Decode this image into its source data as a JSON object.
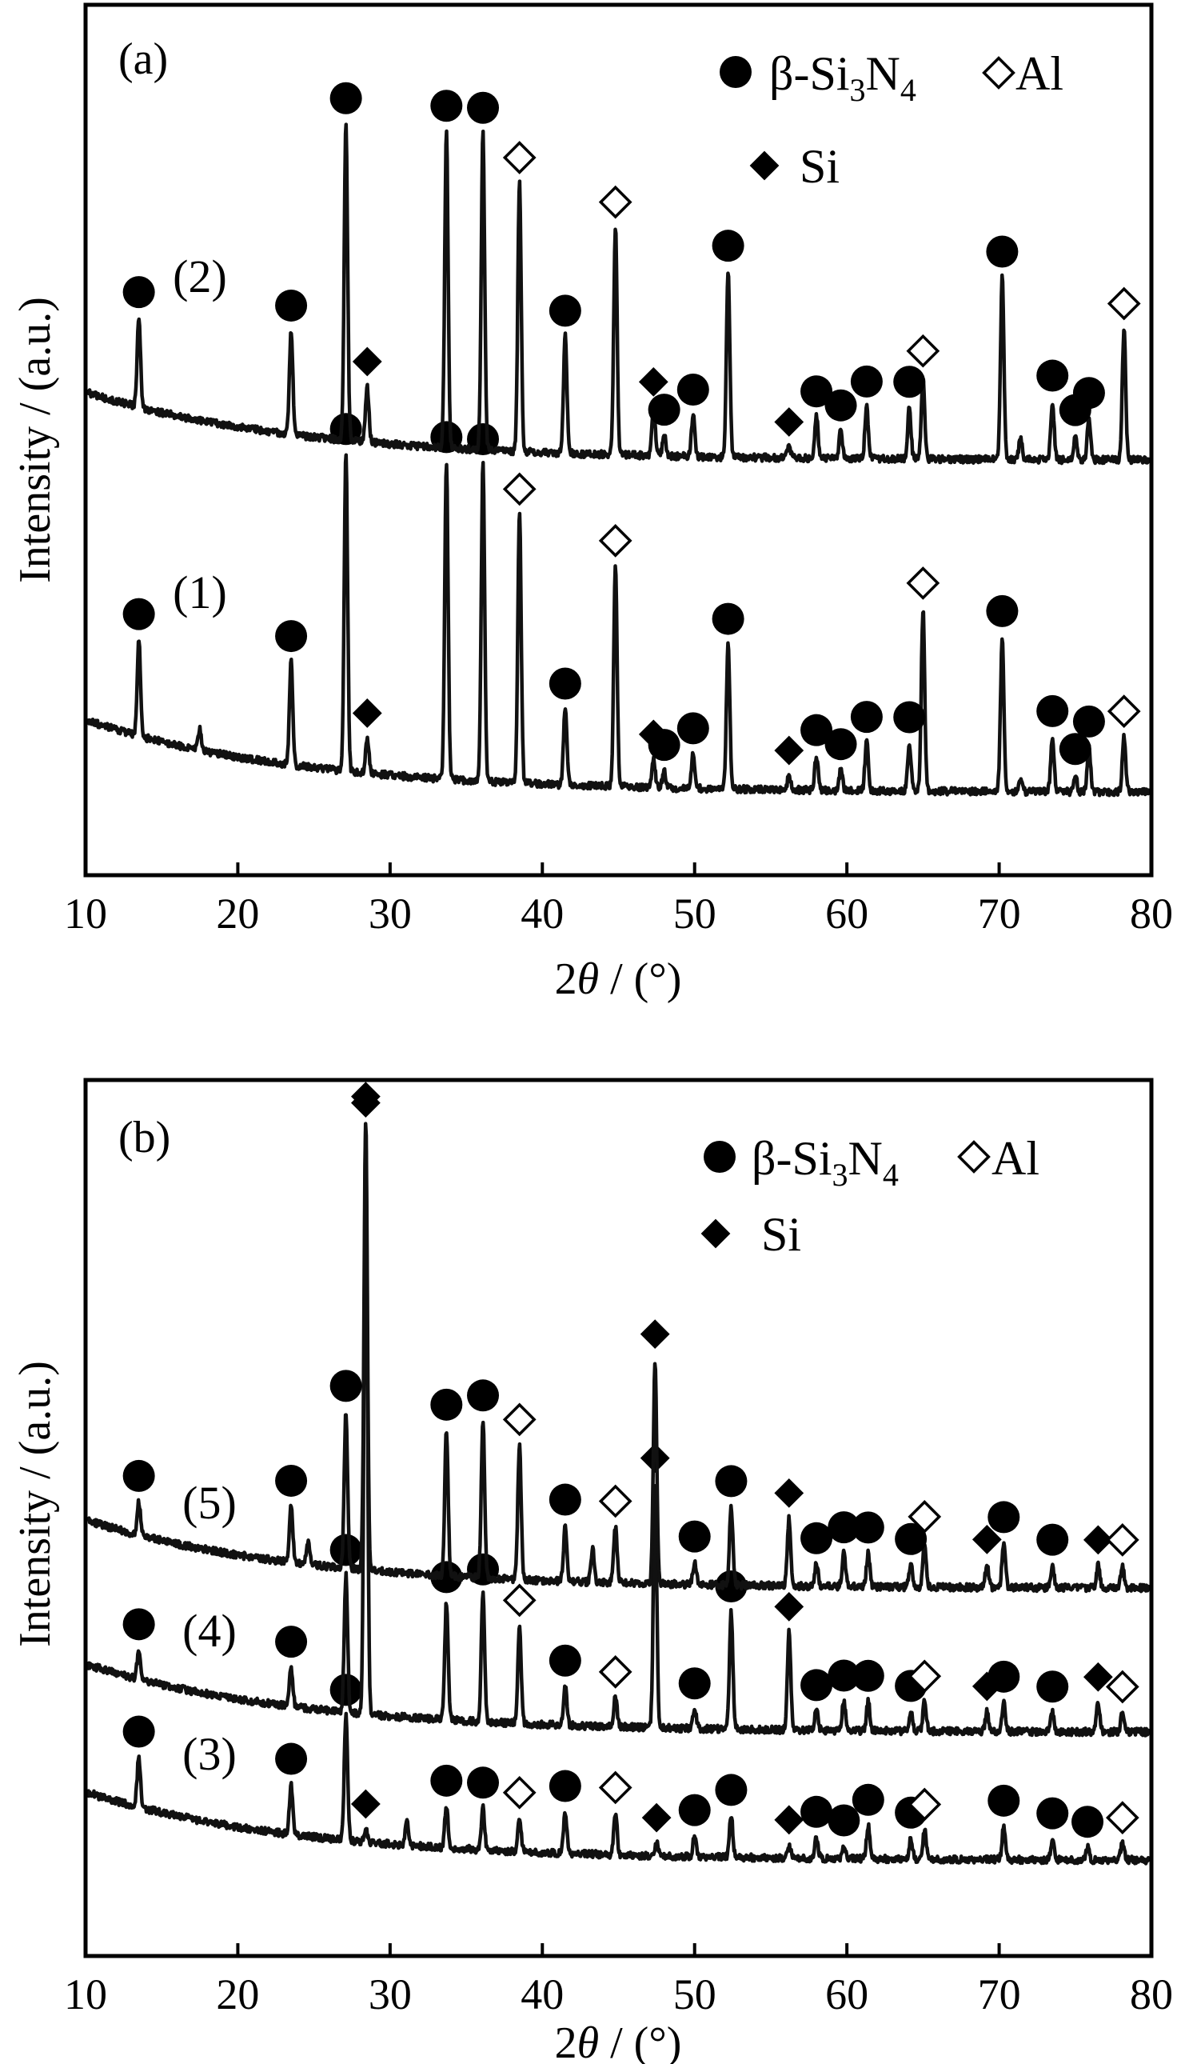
{
  "chart_data": [
    {
      "type": "line",
      "panel": "(a)",
      "xlabel_prefix": "2",
      "xlabel_theta": "θ",
      "xlabel_suffix": " / (°)",
      "ylabel": "Intensity / (a.u.)",
      "xlim": [
        10,
        80
      ],
      "xticks": [
        10,
        20,
        30,
        40,
        50,
        60,
        70,
        80
      ],
      "legend": {
        "si3n4_prefix": "β-Si",
        "si3n4_sub1": "3",
        "si3n4_mid": "N",
        "si3n4_sub2": "4",
        "al": "Al",
        "si": "Si"
      },
      "series": [
        {
          "name": "(1)",
          "peaks": [
            {
              "x": 13.5,
              "h": 0.28,
              "phase": "beta-Si3N4"
            },
            {
              "x": 17.5,
              "h": 0.06,
              "phase": ""
            },
            {
              "x": 23.5,
              "h": 0.3,
              "phase": "beta-Si3N4"
            },
            {
              "x": 27.1,
              "h": 0.92,
              "phase": "beta-Si3N4"
            },
            {
              "x": 28.5,
              "h": 0.1,
              "phase": "Si"
            },
            {
              "x": 33.7,
              "h": 0.92,
              "phase": "beta-Si3N4"
            },
            {
              "x": 36.1,
              "h": 0.92,
              "phase": "beta-Si3N4"
            },
            {
              "x": 38.5,
              "h": 0.78,
              "phase": "Al"
            },
            {
              "x": 41.5,
              "h": 0.22,
              "phase": "beta-Si3N4"
            },
            {
              "x": 44.8,
              "h": 0.64,
              "phase": "Al"
            },
            {
              "x": 47.3,
              "h": 0.08,
              "phase": "Si"
            },
            {
              "x": 48.0,
              "h": 0.05,
              "phase": "beta-Si3N4"
            },
            {
              "x": 49.9,
              "h": 0.1,
              "phase": "beta-Si3N4"
            },
            {
              "x": 52.2,
              "h": 0.42,
              "phase": "beta-Si3N4"
            },
            {
              "x": 56.2,
              "h": 0.04,
              "phase": "Si"
            },
            {
              "x": 58.0,
              "h": 0.1,
              "phase": "beta-Si3N4"
            },
            {
              "x": 59.6,
              "h": 0.06,
              "phase": "beta-Si3N4"
            },
            {
              "x": 61.3,
              "h": 0.14,
              "phase": "beta-Si3N4"
            },
            {
              "x": 64.1,
              "h": 0.14,
              "phase": "beta-Si3N4"
            },
            {
              "x": 65.0,
              "h": 0.53,
              "phase": "Al"
            },
            {
              "x": 70.2,
              "h": 0.45,
              "phase": "beta-Si3N4"
            },
            {
              "x": 71.4,
              "h": 0.03,
              "phase": ""
            },
            {
              "x": 73.5,
              "h": 0.16,
              "phase": "beta-Si3N4"
            },
            {
              "x": 75.0,
              "h": 0.05,
              "phase": "beta-Si3N4"
            },
            {
              "x": 75.9,
              "h": 0.13,
              "phase": "beta-Si3N4"
            },
            {
              "x": 78.2,
              "h": 0.16,
              "phase": "Al"
            }
          ]
        },
        {
          "name": "(2)",
          "peaks": [
            {
              "x": 13.5,
              "h": 0.26,
              "phase": "beta-Si3N4"
            },
            {
              "x": 23.5,
              "h": 0.3,
              "phase": "beta-Si3N4"
            },
            {
              "x": 27.1,
              "h": 0.92,
              "phase": "beta-Si3N4"
            },
            {
              "x": 28.5,
              "h": 0.16,
              "phase": "Si"
            },
            {
              "x": 33.7,
              "h": 0.92,
              "phase": "beta-Si3N4"
            },
            {
              "x": 36.1,
              "h": 0.92,
              "phase": "beta-Si3N4"
            },
            {
              "x": 38.5,
              "h": 0.78,
              "phase": "Al"
            },
            {
              "x": 41.5,
              "h": 0.34,
              "phase": "beta-Si3N4"
            },
            {
              "x": 44.8,
              "h": 0.66,
              "phase": "Al"
            },
            {
              "x": 47.3,
              "h": 0.14,
              "phase": "Si"
            },
            {
              "x": 48.0,
              "h": 0.06,
              "phase": "beta-Si3N4"
            },
            {
              "x": 49.9,
              "h": 0.12,
              "phase": "beta-Si3N4"
            },
            {
              "x": 52.2,
              "h": 0.54,
              "phase": "beta-Si3N4"
            },
            {
              "x": 56.2,
              "h": 0.03,
              "phase": "Si"
            },
            {
              "x": 58.0,
              "h": 0.12,
              "phase": "beta-Si3N4"
            },
            {
              "x": 59.6,
              "h": 0.08,
              "phase": "beta-Si3N4"
            },
            {
              "x": 61.3,
              "h": 0.15,
              "phase": "beta-Si3N4"
            },
            {
              "x": 64.1,
              "h": 0.15,
              "phase": "beta-Si3N4"
            },
            {
              "x": 65.0,
              "h": 0.24,
              "phase": "Al"
            },
            {
              "x": 70.2,
              "h": 0.53,
              "phase": "beta-Si3N4"
            },
            {
              "x": 71.4,
              "h": 0.06,
              "phase": ""
            },
            {
              "x": 73.5,
              "h": 0.17,
              "phase": "beta-Si3N4"
            },
            {
              "x": 75.0,
              "h": 0.07,
              "phase": "beta-Si3N4"
            },
            {
              "x": 75.9,
              "h": 0.12,
              "phase": "beta-Si3N4"
            },
            {
              "x": 78.2,
              "h": 0.38,
              "phase": "Al"
            }
          ]
        }
      ]
    },
    {
      "type": "line",
      "panel": "(b)",
      "xlabel_prefix": "2",
      "xlabel_theta": "θ",
      "xlabel_suffix": " / (°)",
      "ylabel": "Intensity / (a.u.)",
      "xlim": [
        10,
        80
      ],
      "xticks": [
        10,
        20,
        30,
        40,
        50,
        60,
        70,
        80
      ],
      "legend": {
        "si3n4_prefix": "β-Si",
        "si3n4_sub1": "3",
        "si3n4_mid": "N",
        "si3n4_sub2": "4",
        "al": "Al",
        "si": "Si"
      },
      "series": [
        {
          "name": "(3)",
          "peaks": [
            {
              "x": 13.5,
              "h": 0.12,
              "phase": "beta-Si3N4"
            },
            {
              "x": 23.5,
              "h": 0.12,
              "phase": "beta-Si3N4"
            },
            {
              "x": 27.1,
              "h": 0.3,
              "phase": "beta-Si3N4"
            },
            {
              "x": 28.4,
              "h": 0.03,
              "phase": "Si"
            },
            {
              "x": 31.1,
              "h": 0.06,
              "phase": ""
            },
            {
              "x": 33.7,
              "h": 0.1,
              "phase": "beta-Si3N4"
            },
            {
              "x": 36.1,
              "h": 0.1,
              "phase": "beta-Si3N4"
            },
            {
              "x": 38.5,
              "h": 0.08,
              "phase": "Al"
            },
            {
              "x": 41.5,
              "h": 0.1,
              "phase": "beta-Si3N4"
            },
            {
              "x": 44.8,
              "h": 0.1,
              "phase": "Al"
            },
            {
              "x": 47.5,
              "h": 0.03,
              "phase": "Si"
            },
            {
              "x": 50.0,
              "h": 0.05,
              "phase": "beta-Si3N4"
            },
            {
              "x": 52.4,
              "h": 0.1,
              "phase": "beta-Si3N4"
            },
            {
              "x": 56.2,
              "h": 0.03,
              "phase": "Si"
            },
            {
              "x": 58.0,
              "h": 0.05,
              "phase": "beta-Si3N4"
            },
            {
              "x": 59.8,
              "h": 0.03,
              "phase": "beta-Si3N4"
            },
            {
              "x": 61.4,
              "h": 0.08,
              "phase": "beta-Si3N4"
            },
            {
              "x": 64.2,
              "h": 0.05,
              "phase": "beta-Si3N4"
            },
            {
              "x": 65.1,
              "h": 0.07,
              "phase": "Al"
            },
            {
              "x": 70.3,
              "h": 0.08,
              "phase": "beta-Si3N4"
            },
            {
              "x": 73.5,
              "h": 0.05,
              "phase": "beta-Si3N4"
            },
            {
              "x": 75.8,
              "h": 0.03,
              "phase": "beta-Si3N4"
            },
            {
              "x": 78.1,
              "h": 0.04,
              "phase": "Al"
            }
          ]
        },
        {
          "name": "(4)",
          "peaks": [
            {
              "x": 13.5,
              "h": 0.03,
              "phase": "beta-Si3N4"
            },
            {
              "x": 23.5,
              "h": 0.04,
              "phase": "beta-Si3N4"
            },
            {
              "x": 27.1,
              "h": 0.14,
              "phase": "beta-Si3N4"
            },
            {
              "x": 28.4,
              "h": 0.6,
              "phase": "Si"
            },
            {
              "x": 33.7,
              "h": 0.12,
              "phase": "beta-Si3N4"
            },
            {
              "x": 36.1,
              "h": 0.13,
              "phase": "beta-Si3N4"
            },
            {
              "x": 38.5,
              "h": 0.1,
              "phase": "Al"
            },
            {
              "x": 41.5,
              "h": 0.04,
              "phase": "beta-Si3N4"
            },
            {
              "x": 44.8,
              "h": 0.03,
              "phase": "Al"
            },
            {
              "x": 47.4,
              "h": 0.25,
              "phase": "Si"
            },
            {
              "x": 50.0,
              "h": 0.02,
              "phase": "beta-Si3N4"
            },
            {
              "x": 52.4,
              "h": 0.12,
              "phase": "beta-Si3N4"
            },
            {
              "x": 56.2,
              "h": 0.1,
              "phase": "Si"
            },
            {
              "x": 58.0,
              "h": 0.02,
              "phase": "beta-Si3N4"
            },
            {
              "x": 59.8,
              "h": 0.03,
              "phase": "beta-Si3N4"
            },
            {
              "x": 61.4,
              "h": 0.03,
              "phase": "beta-Si3N4"
            },
            {
              "x": 64.2,
              "h": 0.02,
              "phase": "beta-Si3N4"
            },
            {
              "x": 65.1,
              "h": 0.03,
              "phase": "Al"
            },
            {
              "x": 69.2,
              "h": 0.02,
              "phase": "Si"
            },
            {
              "x": 70.3,
              "h": 0.03,
              "phase": "beta-Si3N4"
            },
            {
              "x": 73.5,
              "h": 0.02,
              "phase": "beta-Si3N4"
            },
            {
              "x": 76.5,
              "h": 0.03,
              "phase": "Si"
            },
            {
              "x": 78.1,
              "h": 0.02,
              "phase": "Al"
            }
          ]
        },
        {
          "name": "(5)",
          "peaks": [
            {
              "x": 13.5,
              "h": 0.03,
              "phase": "beta-Si3N4"
            },
            {
              "x": 23.5,
              "h": 0.05,
              "phase": "beta-Si3N4"
            },
            {
              "x": 24.6,
              "h": 0.02,
              "phase": ""
            },
            {
              "x": 27.1,
              "h": 0.14,
              "phase": "beta-Si3N4"
            },
            {
              "x": 28.4,
              "h": 0.4,
              "phase": "Si"
            },
            {
              "x": 33.7,
              "h": 0.13,
              "phase": "beta-Si3N4"
            },
            {
              "x": 36.1,
              "h": 0.14,
              "phase": "beta-Si3N4"
            },
            {
              "x": 38.5,
              "h": 0.12,
              "phase": "Al"
            },
            {
              "x": 41.5,
              "h": 0.05,
              "phase": "beta-Si3N4"
            },
            {
              "x": 43.3,
              "h": 0.03,
              "phase": ""
            },
            {
              "x": 44.8,
              "h": 0.05,
              "phase": "Al"
            },
            {
              "x": 47.4,
              "h": 0.2,
              "phase": "Si"
            },
            {
              "x": 50.0,
              "h": 0.02,
              "phase": "beta-Si3N4"
            },
            {
              "x": 52.4,
              "h": 0.07,
              "phase": "beta-Si3N4"
            },
            {
              "x": 56.2,
              "h": 0.06,
              "phase": "Si"
            },
            {
              "x": 58.0,
              "h": 0.02,
              "phase": "beta-Si3N4"
            },
            {
              "x": 59.8,
              "h": 0.03,
              "phase": "beta-Si3N4"
            },
            {
              "x": 61.4,
              "h": 0.03,
              "phase": "beta-Si3N4"
            },
            {
              "x": 64.2,
              "h": 0.02,
              "phase": "beta-Si3N4"
            },
            {
              "x": 65.1,
              "h": 0.04,
              "phase": "Al"
            },
            {
              "x": 69.2,
              "h": 0.02,
              "phase": "Si"
            },
            {
              "x": 70.3,
              "h": 0.04,
              "phase": "beta-Si3N4"
            },
            {
              "x": 73.5,
              "h": 0.02,
              "phase": "beta-Si3N4"
            },
            {
              "x": 76.5,
              "h": 0.02,
              "phase": "Si"
            },
            {
              "x": 78.1,
              "h": 0.02,
              "phase": "Al"
            }
          ]
        }
      ]
    }
  ]
}
